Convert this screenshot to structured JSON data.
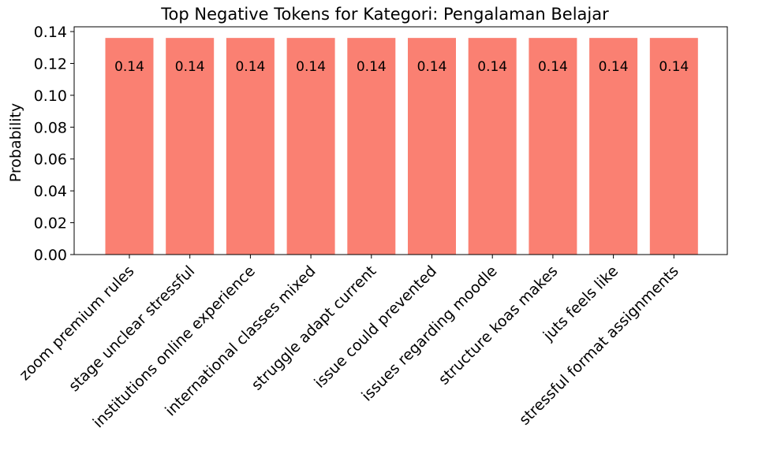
{
  "chart_data": {
    "type": "bar",
    "title": "Top Negative Tokens for Kategori: Pengalaman Belajar",
    "xlabel": "",
    "ylabel": "Probability",
    "categories": [
      "zoom premium rules",
      "stage unclear stressful",
      "institutions online experience",
      "international classes mixed",
      "struggle adapt current",
      "issue could prevented",
      "issues regarding moodle",
      "structure koas makes",
      "juts feels like",
      "stressful format assignments"
    ],
    "values": [
      0.136,
      0.136,
      0.136,
      0.136,
      0.136,
      0.136,
      0.136,
      0.136,
      0.136,
      0.136
    ],
    "data_labels": [
      "0.14",
      "0.14",
      "0.14",
      "0.14",
      "0.14",
      "0.14",
      "0.14",
      "0.14",
      "0.14",
      "0.14"
    ],
    "ylim": [
      0,
      0.143
    ],
    "yticks": [
      "0.00",
      "0.02",
      "0.04",
      "0.06",
      "0.08",
      "0.10",
      "0.12",
      "0.14"
    ],
    "grid": false,
    "bar_color": "#fa8072"
  }
}
